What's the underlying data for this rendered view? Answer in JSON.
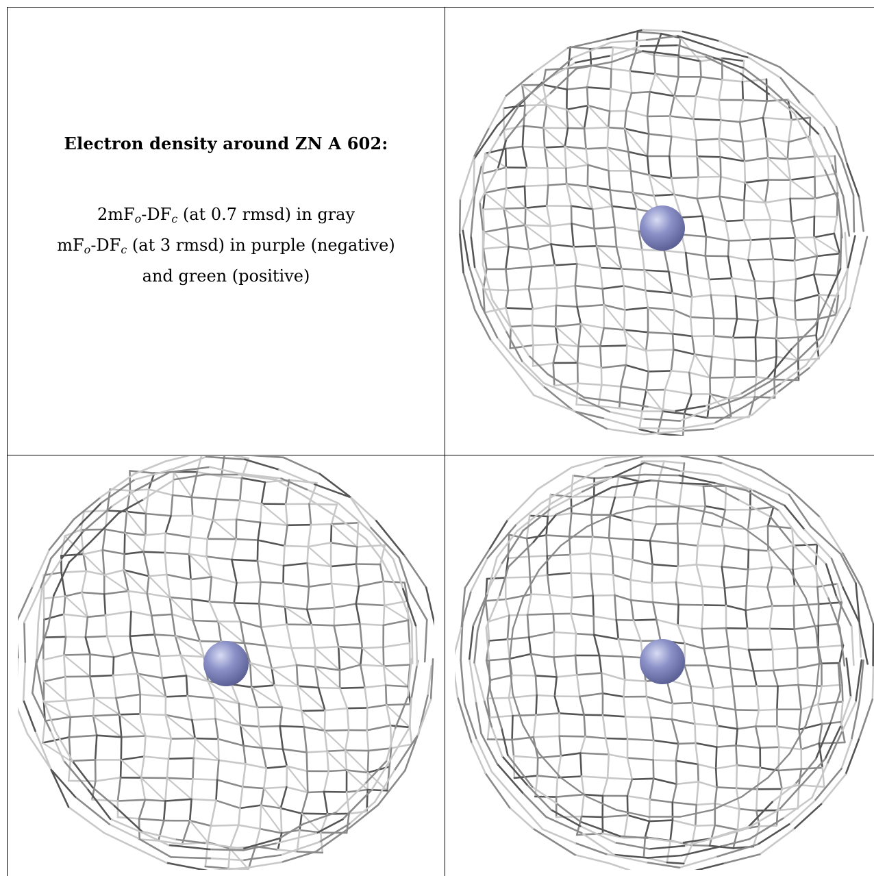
{
  "caption": {
    "title": "Electron density around ZN A 602:",
    "line1_a": "2mF",
    "line1_sub1": "o",
    "line1_b": "-DF",
    "line1_sub2": "c",
    "line1_c": " (at 0.7 rmsd) in gray",
    "line2_a": "mF",
    "line2_sub1": "o",
    "line2_b": "-DF",
    "line2_sub2": "c",
    "line2_c": " (at 3 rmsd) in purple (negative)",
    "line3": "and green (positive)"
  },
  "colors": {
    "mesh_dark": "#555555",
    "mesh_mid": "#8a8a8a",
    "mesh_light": "#c8c8c8",
    "atom": "#8c92c8",
    "atom_highlight": "#d8dcf4",
    "atom_shadow": "#5a5f94"
  },
  "icons": {
    "atom": "zinc-atom-sphere-icon",
    "mesh": "density-mesh-wireframe"
  },
  "panels": [
    {
      "name": "view-1",
      "style": "cage"
    },
    {
      "name": "view-2",
      "style": "slab"
    },
    {
      "name": "view-3",
      "style": "ring"
    }
  ]
}
